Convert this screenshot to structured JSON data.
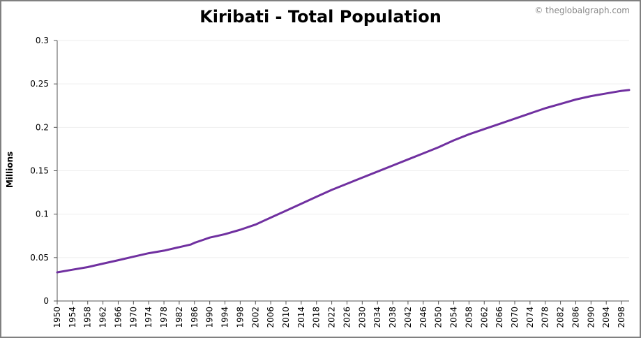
{
  "credit": "© theglobalgraph.com",
  "colors": {
    "line": "#7030A0",
    "grid": "#eeeeee",
    "axis": "#555555",
    "frame": "#808080"
  },
  "chart_data": {
    "type": "line",
    "title": "Kiribati - Total Population",
    "xlabel": "",
    "ylabel": "Millions",
    "xlim": [
      1950,
      2100
    ],
    "ylim": [
      0,
      0.3
    ],
    "x_ticks": [
      1950,
      1954,
      1958,
      1962,
      1966,
      1970,
      1974,
      1978,
      1982,
      1986,
      1990,
      1994,
      1998,
      2002,
      2006,
      2010,
      2014,
      2018,
      2022,
      2026,
      2030,
      2034,
      2038,
      2042,
      2046,
      2050,
      2054,
      2058,
      2062,
      2066,
      2070,
      2074,
      2078,
      2082,
      2086,
      2090,
      2094,
      2098
    ],
    "y_ticks": [
      0,
      0.05,
      0.1,
      0.15,
      0.2,
      0.25,
      0.3
    ],
    "y_tick_labels": [
      "0",
      "0.05",
      "0.1",
      "0.15",
      "0.2",
      "0.25",
      "0.3"
    ],
    "grid": true,
    "series": [
      {
        "x": [
          1950,
          1954,
          1958,
          1962,
          1966,
          1970,
          1974,
          1978,
          1982,
          1985,
          1986,
          1988,
          1990,
          1992,
          1994,
          1998,
          2002,
          2006,
          2010,
          2014,
          2018,
          2022,
          2026,
          2030,
          2034,
          2038,
          2042,
          2046,
          2050,
          2054,
          2058,
          2062,
          2066,
          2070,
          2074,
          2078,
          2082,
          2086,
          2090,
          2094,
          2098,
          2100
        ],
        "values": [
          0.033,
          0.036,
          0.039,
          0.043,
          0.047,
          0.051,
          0.055,
          0.058,
          0.062,
          0.065,
          0.067,
          0.07,
          0.073,
          0.075,
          0.077,
          0.082,
          0.088,
          0.096,
          0.104,
          0.112,
          0.12,
          0.128,
          0.135,
          0.142,
          0.149,
          0.156,
          0.163,
          0.17,
          0.177,
          0.185,
          0.192,
          0.198,
          0.204,
          0.21,
          0.216,
          0.222,
          0.227,
          0.232,
          0.236,
          0.239,
          0.242,
          0.243
        ]
      }
    ]
  }
}
